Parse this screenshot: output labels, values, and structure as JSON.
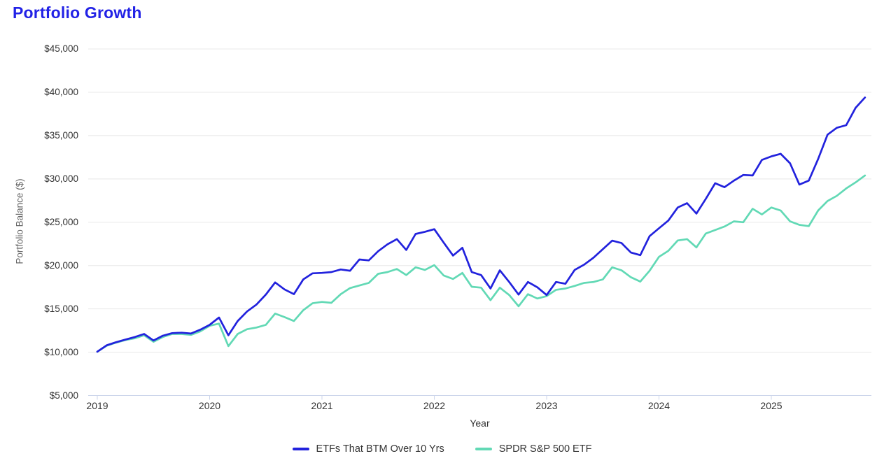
{
  "title": "Portfolio Growth",
  "colors": {
    "title": "#2222e6",
    "grid": "#e8e8e8",
    "axis_line": "#ccd6eb",
    "tick_mark": "#ccd6eb",
    "label_text": "#333333",
    "axis_title_text": "#666666",
    "background": "#ffffff"
  },
  "chart_data": {
    "type": "line",
    "title": "Portfolio Growth",
    "xlabel": "Year",
    "ylabel": "Portfolio Balance ($)",
    "grid": true,
    "legend_position": "bottom",
    "ylim": [
      5000,
      45000
    ],
    "y_ticks": [
      5000,
      10000,
      15000,
      20000,
      25000,
      30000,
      35000,
      40000,
      45000
    ],
    "y_tick_labels": [
      "$5,000",
      "$10,000",
      "$15,000",
      "$20,000",
      "$25,000",
      "$30,000",
      "$35,000",
      "$40,000",
      "$45,000"
    ],
    "x_ticks": [
      2019,
      2020,
      2021,
      2022,
      2023,
      2024,
      2025
    ],
    "x_tick_labels": [
      "2019",
      "2020",
      "2021",
      "2022",
      "2023",
      "2024",
      "2025"
    ],
    "start_month": "2019-01",
    "end_month": "2025-11",
    "months": [
      "2019-01",
      "2019-02",
      "2019-03",
      "2019-04",
      "2019-05",
      "2019-06",
      "2019-07",
      "2019-08",
      "2019-09",
      "2019-10",
      "2019-11",
      "2019-12",
      "2020-01",
      "2020-02",
      "2020-03",
      "2020-04",
      "2020-05",
      "2020-06",
      "2020-07",
      "2020-08",
      "2020-09",
      "2020-10",
      "2020-11",
      "2020-12",
      "2021-01",
      "2021-02",
      "2021-03",
      "2021-04",
      "2021-05",
      "2021-06",
      "2021-07",
      "2021-08",
      "2021-09",
      "2021-10",
      "2021-11",
      "2021-12",
      "2022-01",
      "2022-02",
      "2022-03",
      "2022-04",
      "2022-05",
      "2022-06",
      "2022-07",
      "2022-08",
      "2022-09",
      "2022-10",
      "2022-11",
      "2022-12",
      "2023-01",
      "2023-02",
      "2023-03",
      "2023-04",
      "2023-05",
      "2023-06",
      "2023-07",
      "2023-08",
      "2023-09",
      "2023-10",
      "2023-11",
      "2023-12",
      "2024-01",
      "2024-02",
      "2024-03",
      "2024-04",
      "2024-05",
      "2024-06",
      "2024-07",
      "2024-08",
      "2024-09",
      "2024-10",
      "2024-11",
      "2024-12",
      "2025-01",
      "2025-02",
      "2025-03",
      "2025-04",
      "2025-05",
      "2025-06",
      "2025-07",
      "2025-08",
      "2025-09",
      "2025-10",
      "2025-11"
    ],
    "series": [
      {
        "name": "ETFs That BTM Over 10 Yrs",
        "color": "#2222dd",
        "values": [
          10050,
          10800,
          11150,
          11450,
          11750,
          12100,
          11350,
          11900,
          12200,
          12250,
          12150,
          12600,
          13150,
          14000,
          11950,
          13600,
          14700,
          15500,
          16650,
          18050,
          17250,
          16700,
          18400,
          19100,
          19150,
          19250,
          19550,
          19400,
          20700,
          20600,
          21650,
          22450,
          23050,
          21800,
          23650,
          23900,
          24200,
          22650,
          21150,
          22050,
          19250,
          18900,
          17350,
          19450,
          18100,
          16650,
          18100,
          17500,
          16600,
          18100,
          17900,
          19500,
          20100,
          20900,
          21900,
          22870,
          22600,
          21500,
          21200,
          23400,
          24300,
          25200,
          26700,
          27200,
          26000,
          27700,
          29500,
          29050,
          29800,
          30450,
          30400,
          32200,
          32600,
          32900,
          31800,
          29350,
          29800,
          32300,
          35100,
          35900,
          36200,
          38200,
          39400
        ]
      },
      {
        "name": "SPDR S&P 500 ETF",
        "color": "#62d9b5",
        "values": [
          10050,
          10750,
          11100,
          11400,
          11600,
          11950,
          11200,
          11750,
          12100,
          12100,
          12000,
          12400,
          13050,
          13300,
          10700,
          12100,
          12650,
          12850,
          13150,
          14450,
          14050,
          13600,
          14850,
          15650,
          15800,
          15700,
          16700,
          17400,
          17700,
          18000,
          19050,
          19250,
          19600,
          18900,
          19800,
          19500,
          20050,
          18850,
          18450,
          19150,
          17550,
          17450,
          16000,
          17450,
          16600,
          15300,
          16700,
          16200,
          16470,
          17200,
          17350,
          17650,
          18000,
          18100,
          18400,
          19800,
          19450,
          18650,
          18150,
          19400,
          21000,
          21700,
          22900,
          23050,
          22100,
          23700,
          24100,
          24500,
          25100,
          25000,
          26550,
          25900,
          26700,
          26350,
          25100,
          24700,
          24550,
          26350,
          27450,
          28050,
          28900,
          29600,
          30400
        ]
      }
    ]
  },
  "legend": {
    "items": [
      "ETFs That BTM Over 10 Yrs",
      "SPDR S&P 500 ETF"
    ]
  }
}
